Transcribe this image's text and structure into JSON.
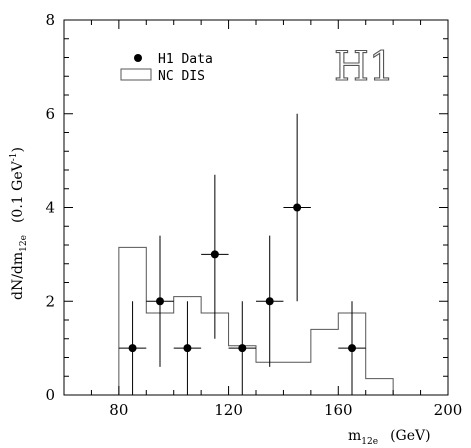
{
  "chart_data": {
    "type": "scatter",
    "brand": "H1",
    "xlabel": {
      "main": "m",
      "sub": "12e",
      "unit": "(GeV)"
    },
    "ylabel": {
      "main": "dN/dm",
      "sub": "12e",
      "unit": "(0.1 GeV",
      "unit_sup": "-1",
      "unit_close": ")"
    },
    "xlim": [
      60,
      200
    ],
    "ylim": [
      0,
      8
    ],
    "x_ticks": [
      80,
      120,
      160,
      200
    ],
    "x_tick_labels": [
      "80",
      "120",
      "160",
      "200"
    ],
    "y_ticks": [
      0,
      2,
      4,
      6,
      8
    ],
    "y_tick_labels": [
      "0",
      "2",
      "4",
      "6",
      "8"
    ],
    "legend": {
      "position": "top-left",
      "entries": [
        {
          "label": "H1 Data",
          "marker": "filled-circle"
        },
        {
          "label": "NC DIS",
          "marker": "open-box"
        }
      ]
    },
    "series": [
      {
        "name": "H1 Data",
        "kind": "points-with-errors",
        "points": [
          {
            "x": 85,
            "y": 1,
            "xerr": 5,
            "ylo": 0,
            "yhi": 2.0
          },
          {
            "x": 95,
            "y": 2,
            "xerr": 5,
            "ylo": 0.6,
            "yhi": 3.4
          },
          {
            "x": 105,
            "y": 1,
            "xerr": 5,
            "ylo": 0,
            "yhi": 2.0
          },
          {
            "x": 115,
            "y": 3,
            "xerr": 5,
            "ylo": 1.2,
            "yhi": 4.7
          },
          {
            "x": 125,
            "y": 1,
            "xerr": 5,
            "ylo": 0,
            "yhi": 2.0
          },
          {
            "x": 135,
            "y": 2,
            "xerr": 5,
            "ylo": 0.6,
            "yhi": 3.4
          },
          {
            "x": 145,
            "y": 4,
            "xerr": 5,
            "ylo": 2.0,
            "yhi": 6.0
          },
          {
            "x": 165,
            "y": 1,
            "xerr": 5,
            "ylo": 0,
            "yhi": 2.0
          }
        ]
      },
      {
        "name": "NC DIS",
        "kind": "histogram",
        "bins": [
          {
            "lo": 80,
            "hi": 90,
            "value": 3.15
          },
          {
            "lo": 90,
            "hi": 100,
            "value": 1.75
          },
          {
            "lo": 100,
            "hi": 110,
            "value": 2.1
          },
          {
            "lo": 110,
            "hi": 120,
            "value": 1.75
          },
          {
            "lo": 120,
            "hi": 130,
            "value": 1.05
          },
          {
            "lo": 130,
            "hi": 150,
            "value": 0.7
          },
          {
            "lo": 150,
            "hi": 160,
            "value": 1.4
          },
          {
            "lo": 160,
            "hi": 170,
            "value": 1.75
          },
          {
            "lo": 170,
            "hi": 180,
            "value": 0.35
          }
        ]
      }
    ]
  }
}
